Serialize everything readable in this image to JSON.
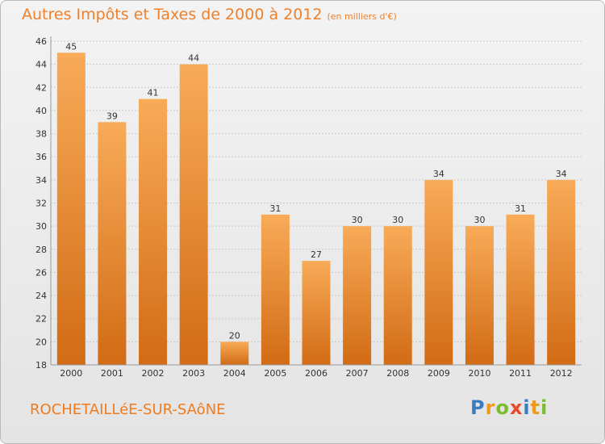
{
  "title": "Autres Impôts et Taxes de 2000 à 2012",
  "subtitle": "(en milliers d'€)",
  "commune": "ROCHETAILLéE-SUR-SAôNE",
  "logo_text": "Proxiti",
  "colors": {
    "bar_light": "#f8ab58",
    "bar_dark": "#d26b14",
    "title": "#f07f2a",
    "logo": [
      "#3a7cc4",
      "#f09a1c",
      "#7bbd2c",
      "#e84a2b",
      "#3a7cc4",
      "#f09a1c",
      "#7bbd2c"
    ]
  },
  "chart_data": {
    "type": "bar",
    "categories": [
      "2000",
      "2001",
      "2002",
      "2003",
      "2004",
      "2005",
      "2006",
      "2007",
      "2008",
      "2009",
      "2010",
      "2011",
      "2012"
    ],
    "values": [
      45,
      39,
      41,
      44,
      20,
      31,
      27,
      30,
      30,
      34,
      30,
      31,
      34
    ],
    "data_labels": [
      "45",
      "39",
      "41",
      "44",
      "20",
      "31",
      "27",
      "30",
      "30",
      "34",
      "30",
      "31",
      "34"
    ],
    "title": "Autres Impôts et Taxes de 2000 à 2012",
    "ylim": [
      18,
      46
    ],
    "yticks": [
      18,
      20,
      22,
      24,
      26,
      28,
      30,
      32,
      34,
      36,
      38,
      40,
      42,
      44,
      46
    ],
    "grid": true
  }
}
